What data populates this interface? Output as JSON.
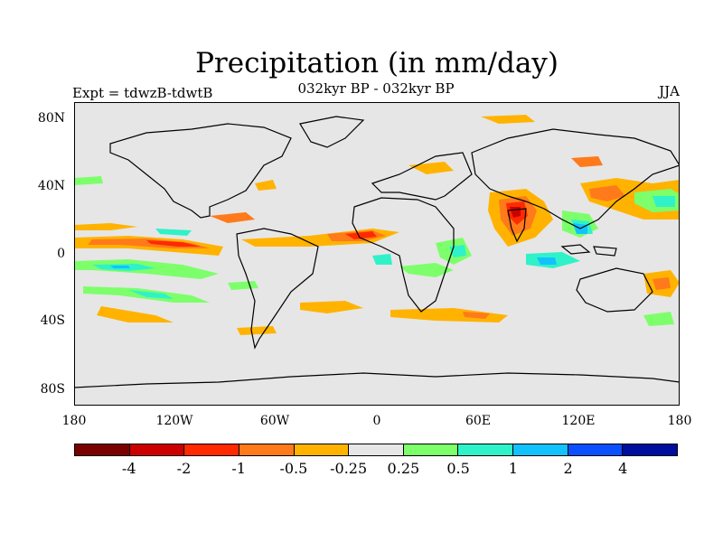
{
  "title": "Precipitation (in mm/day)",
  "subtitle": "032kyr BP - 032kyr BP",
  "left_label": "Expt = tdwzB-tdwtB",
  "right_label": "JJA",
  "y_ticks": [
    "80N",
    "40N",
    "0",
    "40S",
    "80S"
  ],
  "x_ticks": [
    "180",
    "120W",
    "60W",
    "0",
    "60E",
    "120E",
    "180"
  ],
  "colorbar": {
    "colors": [
      "#7a0000",
      "#cc0000",
      "#ff2a00",
      "#ff7a1a",
      "#ffb300",
      "#e6e6e6",
      "#7dff6b",
      "#2ff2c8",
      "#12c2ff",
      "#0a50ff",
      "#000d9e"
    ],
    "labels": [
      "-4",
      "-2",
      "-1",
      "-0.5",
      "-0.25",
      "0.25",
      "0.5",
      "1",
      "2",
      "4"
    ]
  },
  "chart_data": {
    "type": "heatmap",
    "title": "Precipitation (in mm/day)",
    "subtitle": "032kyr BP - 032kyr BP",
    "left_label": "Expt = tdwzB-tdwtB",
    "right_label": "JJA",
    "xlim": [
      -180,
      180
    ],
    "ylim": [
      -90,
      90
    ],
    "x_ticks": [
      "180",
      "120W",
      "60W",
      "0",
      "60E",
      "120E",
      "180"
    ],
    "y_ticks": [
      "80N",
      "40N",
      "0",
      "40S",
      "80S"
    ],
    "levels": [
      -4,
      -2,
      -1,
      -0.5,
      -0.25,
      0.25,
      0.5,
      1,
      2,
      4
    ],
    "background": "#e6e6e6"
  }
}
